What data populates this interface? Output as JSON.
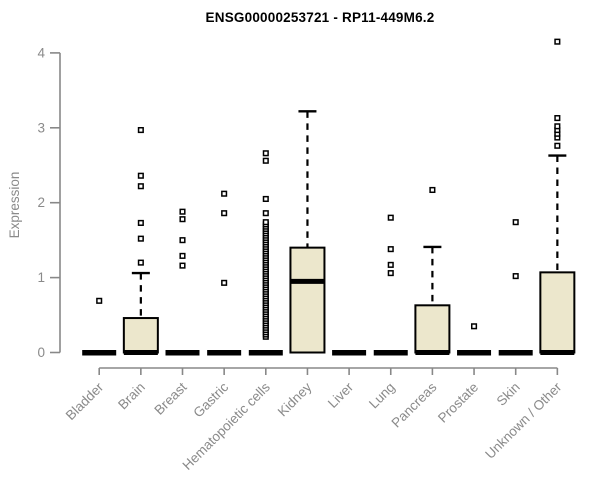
{
  "chart_data": {
    "type": "boxplot",
    "title": "ENSG00000253721 - RP11-449M6.2",
    "ylabel": "Expression",
    "xlabel": "",
    "ylim": [
      0,
      4.2
    ],
    "yticks": [
      0,
      1,
      2,
      3,
      4
    ],
    "grid": false,
    "legend": null,
    "colors": {
      "box_fill": "#ECE7CC",
      "box_stroke": "#000000",
      "median": "#000000",
      "whisker": "#000000",
      "outlier_stroke": "#000000",
      "outlier_fill": "#ffffff",
      "axis": "#888888",
      "tick_label": "#8a8a8a",
      "title": "#000000",
      "background": "#ffffff"
    },
    "categories": [
      "Bladder",
      "Brain",
      "Breast",
      "Gastric",
      "Hematopoietic cells",
      "Kidney",
      "Liver",
      "Lung",
      "Pancreas",
      "Prostate",
      "Skin",
      "Unknown / Other"
    ],
    "boxes": [
      {
        "category": "Bladder",
        "q1": 0,
        "median": 0,
        "q3": 0,
        "whisker_low": 0,
        "whisker_high": 0,
        "outliers": [
          0.69
        ]
      },
      {
        "category": "Brain",
        "q1": 0,
        "median": 0,
        "q3": 0.46,
        "whisker_low": 0,
        "whisker_high": 1.06,
        "outliers": [
          1.2,
          1.52,
          1.73,
          2.22,
          2.36,
          2.97
        ]
      },
      {
        "category": "Breast",
        "q1": 0,
        "median": 0,
        "q3": 0,
        "whisker_low": 0,
        "whisker_high": 0,
        "outliers": [
          1.16,
          1.29,
          1.5,
          1.78,
          1.88
        ]
      },
      {
        "category": "Gastric",
        "q1": 0,
        "median": 0,
        "q3": 0,
        "whisker_low": 0,
        "whisker_high": 0,
        "outliers": [
          0.93,
          1.86,
          2.12
        ]
      },
      {
        "category": "Hematopoietic cells",
        "q1": 0,
        "median": 0,
        "q3": 0,
        "whisker_low": 0,
        "whisker_high": 0,
        "outliers": [
          0.21,
          0.24,
          0.27,
          0.3,
          0.33,
          0.36,
          0.39,
          0.42,
          0.45,
          0.48,
          0.51,
          0.54,
          0.57,
          0.6,
          0.63,
          0.66,
          0.69,
          0.72,
          0.75,
          0.78,
          0.81,
          0.84,
          0.87,
          0.9,
          0.93,
          0.96,
          0.99,
          1.02,
          1.05,
          1.08,
          1.11,
          1.14,
          1.17,
          1.2,
          1.23,
          1.26,
          1.29,
          1.32,
          1.35,
          1.38,
          1.41,
          1.44,
          1.47,
          1.5,
          1.53,
          1.56,
          1.59,
          1.62,
          1.65,
          1.68,
          1.71,
          1.74,
          1.86,
          2.05,
          2.56,
          2.66
        ]
      },
      {
        "category": "Kidney",
        "q1": 0,
        "median": 0.95,
        "q3": 1.4,
        "whisker_low": 0,
        "whisker_high": 3.22,
        "outliers": []
      },
      {
        "category": "Liver",
        "q1": 0,
        "median": 0,
        "q3": 0,
        "whisker_low": 0,
        "whisker_high": 0,
        "outliers": []
      },
      {
        "category": "Lung",
        "q1": 0,
        "median": 0,
        "q3": 0,
        "whisker_low": 0,
        "whisker_high": 0,
        "outliers": [
          1.06,
          1.17,
          1.38,
          1.8
        ]
      },
      {
        "category": "Pancreas",
        "q1": 0,
        "median": 0,
        "q3": 0.63,
        "whisker_low": 0,
        "whisker_high": 1.41,
        "outliers": [
          2.17
        ]
      },
      {
        "category": "Prostate",
        "q1": 0,
        "median": 0,
        "q3": 0,
        "whisker_low": 0,
        "whisker_high": 0,
        "outliers": [
          0.35
        ]
      },
      {
        "category": "Skin",
        "q1": 0,
        "median": 0,
        "q3": 0,
        "whisker_low": 0,
        "whisker_high": 0,
        "outliers": [
          1.02,
          1.74
        ]
      },
      {
        "category": "Unknown / Other",
        "q1": 0,
        "median": 0,
        "q3": 1.07,
        "whisker_low": 0,
        "whisker_high": 2.63,
        "outliers": [
          2.76,
          2.87,
          2.92,
          2.97,
          3.02,
          3.13,
          4.15
        ]
      }
    ]
  }
}
